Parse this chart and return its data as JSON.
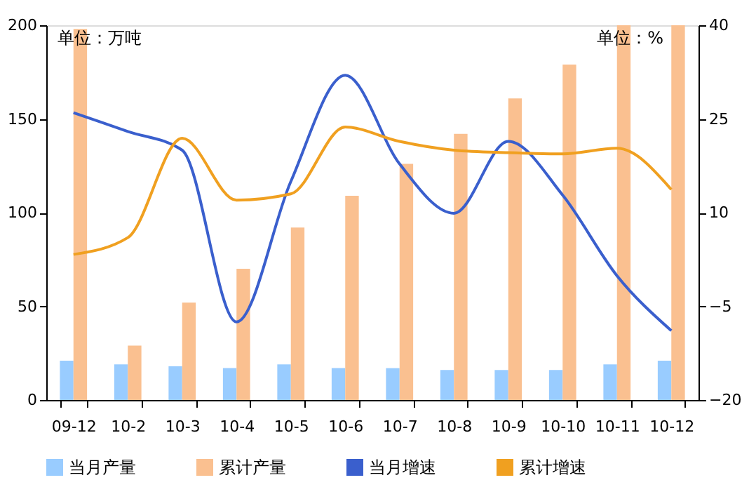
{
  "chart_data": {
    "type": "bar",
    "categories": [
      "09-12",
      "10-2",
      "10-3",
      "10-4",
      "10-5",
      "10-6",
      "10-7",
      "10-8",
      "10-9",
      "10-10",
      "10-11",
      "10-12"
    ],
    "series": [
      {
        "name": "当月产量",
        "color": "#99ccff",
        "values": [
          21,
          19,
          18,
          17,
          19,
          17,
          17,
          16,
          16,
          16,
          19,
          21
        ]
      },
      {
        "name": "累计产量",
        "color": "#fac090",
        "values": [
          198,
          29,
          52,
          70,
          92,
          109,
          126,
          142,
          161,
          179,
          200,
          200
        ]
      },
      {
        "name": "当月增速",
        "type": "line",
        "axis": "y2",
        "color": "#3a5fcd",
        "values": [
          26,
          23,
          20,
          -7.5,
          15,
          32,
          17.8,
          9.9,
          21.4,
          12.8,
          -0.1,
          -8.9
        ]
      },
      {
        "name": "累计增速",
        "type": "line",
        "axis": "y2",
        "color": "#f0a020",
        "values": [
          3.3,
          6,
          21.9,
          12,
          13,
          23.7,
          21.4,
          20,
          19.6,
          19.4,
          20.3,
          13.7
        ]
      }
    ],
    "ylim": [
      0,
      200
    ],
    "yticks": [
      0,
      50,
      100,
      150,
      200
    ],
    "y2lim": [
      -20,
      40
    ],
    "y2ticks": [
      -20,
      -5,
      10,
      25,
      40
    ],
    "annotations": [
      "单位：万吨",
      "单位：%"
    ],
    "legend": "bottom",
    "grid": false,
    "line_style": "solid",
    "marker": "none"
  }
}
